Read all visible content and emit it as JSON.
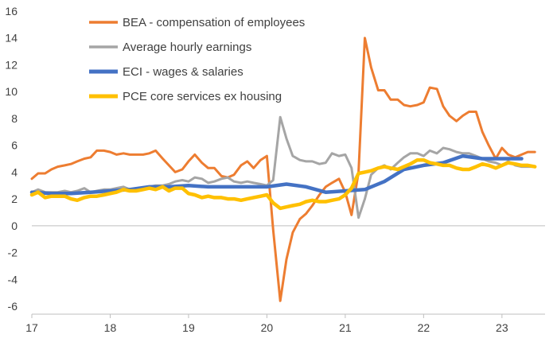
{
  "chart_data": {
    "type": "line",
    "title": "",
    "xlabel": "",
    "ylabel": "",
    "xlim": [
      17,
      23.55
    ],
    "ylim": [
      -6,
      16
    ],
    "y_ticks": [
      -6,
      -4,
      -2,
      0,
      2,
      4,
      6,
      8,
      10,
      12,
      14,
      16
    ],
    "x_ticks": [
      17,
      18,
      19,
      20,
      21,
      22,
      23
    ],
    "x_tick_labels": [
      "17",
      "18",
      "19",
      "20",
      "21",
      "22",
      "23"
    ],
    "gridlines": false,
    "legend_position": "top-left",
    "series": [
      {
        "name": "BEA - compensation of employees",
        "color": "#ED7D31",
        "x": [
          17.0,
          17.08,
          17.17,
          17.25,
          17.33,
          17.42,
          17.5,
          17.58,
          17.67,
          17.75,
          17.83,
          17.92,
          18.0,
          18.08,
          18.17,
          18.25,
          18.33,
          18.42,
          18.5,
          18.58,
          18.67,
          18.75,
          18.83,
          18.92,
          19.0,
          19.08,
          19.17,
          19.25,
          19.33,
          19.42,
          19.5,
          19.58,
          19.67,
          19.75,
          19.83,
          19.92,
          20.0,
          20.08,
          20.17,
          20.25,
          20.33,
          20.42,
          20.5,
          20.58,
          20.67,
          20.75,
          20.83,
          20.92,
          21.0,
          21.08,
          21.17,
          21.25,
          21.33,
          21.42,
          21.5,
          21.58,
          21.67,
          21.75,
          21.83,
          21.92,
          22.0,
          22.08,
          22.17,
          22.25,
          22.33,
          22.42,
          22.5,
          22.58,
          22.67,
          22.75,
          22.83,
          22.92,
          23.0,
          23.08,
          23.17,
          23.25,
          23.33,
          23.42
        ],
        "values": [
          3.5,
          3.9,
          3.9,
          4.2,
          4.4,
          4.5,
          4.6,
          4.8,
          5.0,
          5.1,
          5.6,
          5.6,
          5.5,
          5.3,
          5.4,
          5.3,
          5.3,
          5.3,
          5.4,
          5.6,
          5.0,
          4.5,
          4.0,
          4.2,
          4.8,
          5.3,
          4.7,
          4.3,
          4.3,
          3.7,
          3.6,
          3.8,
          4.5,
          4.8,
          4.3,
          4.9,
          5.2,
          -0.3,
          -5.6,
          -2.5,
          -0.5,
          0.5,
          0.9,
          1.5,
          2.3,
          2.9,
          3.2,
          3.5,
          2.5,
          0.8,
          4.0,
          14.0,
          11.8,
          10.1,
          10.1,
          9.4,
          9.4,
          9.0,
          8.9,
          9.0,
          9.2,
          10.3,
          10.2,
          8.9,
          8.2,
          7.8,
          8.2,
          8.5,
          8.5,
          7.0,
          6.0,
          5.0,
          5.8,
          5.3,
          5.1,
          5.3,
          5.5,
          5.5
        ]
      },
      {
        "name": "Average hourly earnings",
        "color": "#A5A5A5",
        "x": [
          17.0,
          17.08,
          17.17,
          17.25,
          17.33,
          17.42,
          17.5,
          17.58,
          17.67,
          17.75,
          17.83,
          17.92,
          18.0,
          18.08,
          18.17,
          18.25,
          18.33,
          18.42,
          18.5,
          18.58,
          18.67,
          18.75,
          18.83,
          18.92,
          19.0,
          19.08,
          19.17,
          19.25,
          19.33,
          19.42,
          19.5,
          19.58,
          19.67,
          19.75,
          19.83,
          19.92,
          20.0,
          20.08,
          20.17,
          20.25,
          20.33,
          20.42,
          20.5,
          20.58,
          20.67,
          20.75,
          20.83,
          20.92,
          21.0,
          21.08,
          21.17,
          21.25,
          21.33,
          21.42,
          21.5,
          21.58,
          21.67,
          21.75,
          21.83,
          21.92,
          22.0,
          22.08,
          22.17,
          22.25,
          22.33,
          22.42,
          22.5,
          22.58,
          22.67,
          22.75,
          22.83,
          22.92,
          23.0,
          23.08,
          23.17,
          23.25,
          23.33,
          23.42
        ],
        "values": [
          2.5,
          2.7,
          2.5,
          2.5,
          2.5,
          2.6,
          2.5,
          2.6,
          2.8,
          2.5,
          2.6,
          2.7,
          2.7,
          2.8,
          2.9,
          2.7,
          2.8,
          2.8,
          2.9,
          3.0,
          3.0,
          3.1,
          3.3,
          3.4,
          3.3,
          3.6,
          3.5,
          3.2,
          3.3,
          3.5,
          3.6,
          3.3,
          3.2,
          3.3,
          3.2,
          3.1,
          3.0,
          3.4,
          8.1,
          6.5,
          5.2,
          4.9,
          4.8,
          4.8,
          4.6,
          4.7,
          5.4,
          5.2,
          5.3,
          4.3,
          0.6,
          2.0,
          3.8,
          4.3,
          4.5,
          4.2,
          4.7,
          5.1,
          5.4,
          5.4,
          5.2,
          5.6,
          5.4,
          5.8,
          5.7,
          5.5,
          5.4,
          5.4,
          5.2,
          5.0,
          4.8,
          4.7,
          4.5,
          4.8,
          4.5,
          4.4,
          4.4,
          4.4
        ]
      },
      {
        "name": "ECI - wages & salaries",
        "color": "#4472C4",
        "x": [
          17.0,
          17.25,
          17.5,
          17.75,
          18.0,
          18.25,
          18.5,
          18.75,
          19.0,
          19.25,
          19.5,
          19.75,
          20.0,
          20.25,
          20.5,
          20.75,
          21.0,
          21.25,
          21.5,
          21.75,
          22.0,
          22.25,
          22.5,
          22.75,
          23.0,
          23.25
        ],
        "values": [
          2.5,
          2.4,
          2.4,
          2.5,
          2.6,
          2.7,
          2.9,
          2.9,
          3.0,
          2.9,
          2.9,
          2.9,
          2.9,
          3.1,
          2.9,
          2.5,
          2.6,
          2.7,
          3.3,
          4.2,
          4.5,
          4.7,
          5.2,
          5.0,
          5.0,
          5.0
        ]
      },
      {
        "name": "PCE core services ex housing",
        "color": "#FFC000",
        "x": [
          17.0,
          17.08,
          17.17,
          17.25,
          17.33,
          17.42,
          17.5,
          17.58,
          17.67,
          17.75,
          17.83,
          17.92,
          18.0,
          18.08,
          18.17,
          18.25,
          18.33,
          18.42,
          18.5,
          18.58,
          18.67,
          18.75,
          18.83,
          18.92,
          19.0,
          19.08,
          19.17,
          19.25,
          19.33,
          19.42,
          19.5,
          19.58,
          19.67,
          19.75,
          19.83,
          19.92,
          20.0,
          20.08,
          20.17,
          20.25,
          20.33,
          20.42,
          20.5,
          20.58,
          20.67,
          20.75,
          20.83,
          20.92,
          21.0,
          21.08,
          21.17,
          21.25,
          21.33,
          21.42,
          21.5,
          21.58,
          21.67,
          21.75,
          21.83,
          21.92,
          22.0,
          22.08,
          22.17,
          22.25,
          22.33,
          22.42,
          22.5,
          22.58,
          22.67,
          22.75,
          22.83,
          22.92,
          23.0,
          23.08,
          23.17,
          23.25,
          23.33,
          23.42
        ],
        "values": [
          2.3,
          2.5,
          2.1,
          2.2,
          2.2,
          2.2,
          2.0,
          1.9,
          2.1,
          2.2,
          2.2,
          2.3,
          2.4,
          2.5,
          2.7,
          2.6,
          2.6,
          2.7,
          2.8,
          2.7,
          2.9,
          2.6,
          2.8,
          2.8,
          2.4,
          2.3,
          2.1,
          2.2,
          2.1,
          2.1,
          2.0,
          2.0,
          1.9,
          2.0,
          2.1,
          2.2,
          2.3,
          1.7,
          1.3,
          1.4,
          1.5,
          1.6,
          1.8,
          1.9,
          1.8,
          1.8,
          1.9,
          2.0,
          2.3,
          2.8,
          3.9,
          4.0,
          4.1,
          4.3,
          4.4,
          4.3,
          4.2,
          4.4,
          4.6,
          4.9,
          4.9,
          4.7,
          4.6,
          4.5,
          4.5,
          4.3,
          4.2,
          4.2,
          4.4,
          4.6,
          4.5,
          4.3,
          4.5,
          4.7,
          4.6,
          4.5,
          4.5,
          4.4
        ]
      }
    ]
  }
}
